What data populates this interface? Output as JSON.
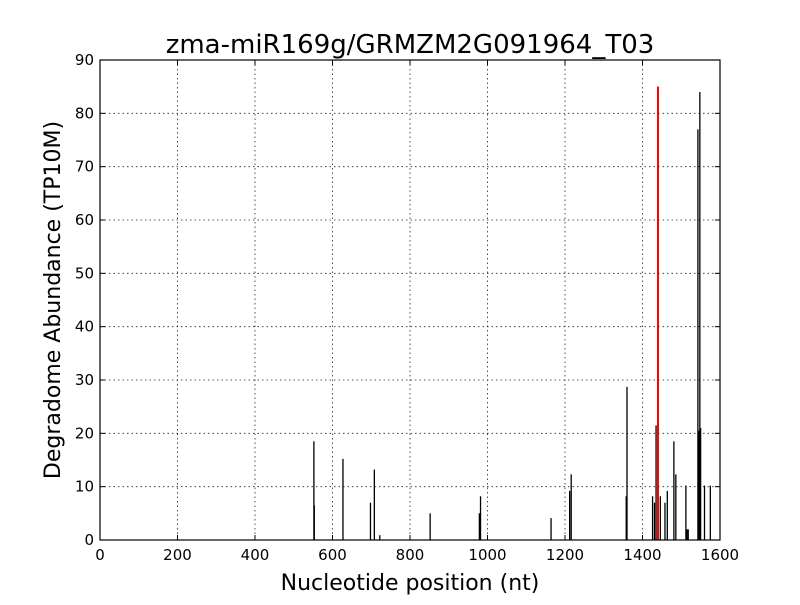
{
  "chart_data": {
    "type": "bar",
    "title": "zma-miR169g/GRMZM2G091964_T03",
    "xlabel": "Nucleotide position (nt)",
    "ylabel": "Degradome Abundance (TP10M)",
    "xlim": [
      0,
      1600
    ],
    "ylim": [
      0,
      90
    ],
    "xticks": [
      0,
      200,
      400,
      600,
      800,
      1000,
      1200,
      1400,
      1600
    ],
    "yticks": [
      0,
      10,
      20,
      30,
      40,
      50,
      60,
      70,
      80,
      90
    ],
    "grid": true,
    "colors": {
      "bars": "#000000",
      "highlight": "#ff0000"
    },
    "series": [
      {
        "values": [
          {
            "x": 552,
            "y": 18.5
          },
          {
            "x": 553,
            "y": 6.5
          },
          {
            "x": 627,
            "y": 15.2
          },
          {
            "x": 698,
            "y": 7.0
          },
          {
            "x": 708,
            "y": 13.2
          },
          {
            "x": 722,
            "y": 0.9
          },
          {
            "x": 852,
            "y": 5.0
          },
          {
            "x": 979,
            "y": 5.0
          },
          {
            "x": 982,
            "y": 8.2
          },
          {
            "x": 1164,
            "y": 4.1
          },
          {
            "x": 1212,
            "y": 9.2
          },
          {
            "x": 1216,
            "y": 12.3
          },
          {
            "x": 1358,
            "y": 8.2
          },
          {
            "x": 1360,
            "y": 28.7
          },
          {
            "x": 1426,
            "y": 8.2
          },
          {
            "x": 1431,
            "y": 7.0
          },
          {
            "x": 1435,
            "y": 21.5
          },
          {
            "x": 1446,
            "y": 8.2
          },
          {
            "x": 1458,
            "y": 7.0
          },
          {
            "x": 1464,
            "y": 9.2
          },
          {
            "x": 1481,
            "y": 18.5
          },
          {
            "x": 1486,
            "y": 12.3
          },
          {
            "x": 1512,
            "y": 10.2
          },
          {
            "x": 1515,
            "y": 2.0
          },
          {
            "x": 1518,
            "y": 2.0
          },
          {
            "x": 1543,
            "y": 77.0
          },
          {
            "x": 1546,
            "y": 20.5
          },
          {
            "x": 1548,
            "y": 84.0
          },
          {
            "x": 1550,
            "y": 21.0
          },
          {
            "x": 1560,
            "y": 10.2
          },
          {
            "x": 1575,
            "y": 10.2
          }
        ]
      },
      {
        "values": [
          {
            "x": 1440,
            "y": 85.0
          }
        ]
      }
    ]
  }
}
